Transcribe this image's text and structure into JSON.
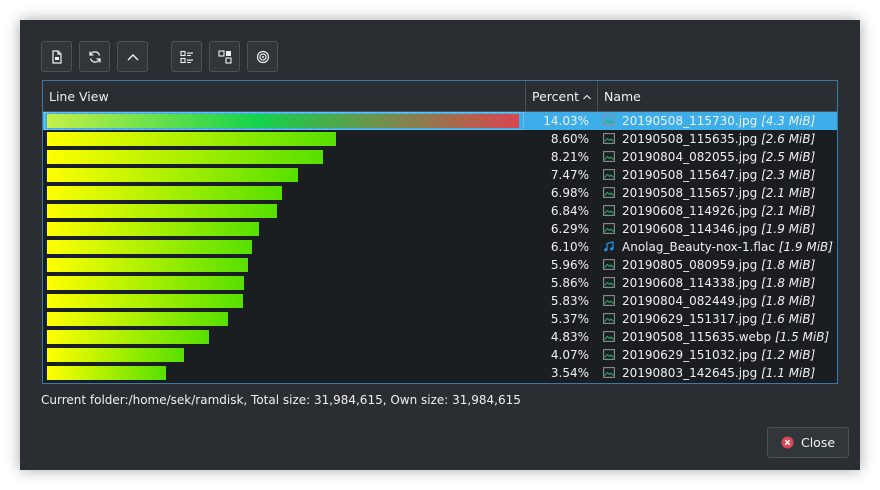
{
  "header": {
    "line_view": "Line View",
    "percent": "Percent",
    "name": "Name"
  },
  "rows": [
    {
      "pct": "14.03%",
      "value": 14.03,
      "name": "20190508_115730.jpg",
      "size": "[4.3 MiB]",
      "icon": "image-icon",
      "selected": true
    },
    {
      "pct": "8.60%",
      "value": 8.6,
      "name": "20190508_115635.jpg",
      "size": "[2.6 MiB]",
      "icon": "image-icon"
    },
    {
      "pct": "8.21%",
      "value": 8.21,
      "name": "20190804_082055.jpg",
      "size": "[2.5 MiB]",
      "icon": "image-icon"
    },
    {
      "pct": "7.47%",
      "value": 7.47,
      "name": "20190508_115647.jpg",
      "size": "[2.3 MiB]",
      "icon": "image-icon"
    },
    {
      "pct": "6.98%",
      "value": 6.98,
      "name": "20190508_115657.jpg",
      "size": "[2.1 MiB]",
      "icon": "image-icon"
    },
    {
      "pct": "6.84%",
      "value": 6.84,
      "name": "20190608_114926.jpg",
      "size": "[2.1 MiB]",
      "icon": "image-icon"
    },
    {
      "pct": "6.29%",
      "value": 6.29,
      "name": "20190608_114346.jpg",
      "size": "[1.9 MiB]",
      "icon": "image-icon"
    },
    {
      "pct": "6.10%",
      "value": 6.1,
      "name": "Anolag_Beauty-nox-1.flac",
      "size": "[1.9 MiB]",
      "icon": "audio-icon"
    },
    {
      "pct": "5.96%",
      "value": 5.96,
      "name": "20190805_080959.jpg",
      "size": "[1.8 MiB]",
      "icon": "image-icon"
    },
    {
      "pct": "5.86%",
      "value": 5.86,
      "name": "20190608_114338.jpg",
      "size": "[1.8 MiB]",
      "icon": "image-icon"
    },
    {
      "pct": "5.83%",
      "value": 5.83,
      "name": "20190804_082449.jpg",
      "size": "[1.8 MiB]",
      "icon": "image-icon"
    },
    {
      "pct": "5.37%",
      "value": 5.37,
      "name": "20190629_151317.jpg",
      "size": "[1.6 MiB]",
      "icon": "image-icon"
    },
    {
      "pct": "4.83%",
      "value": 4.83,
      "name": "20190508_115635.webp",
      "size": "[1.5 MiB]",
      "icon": "image-icon"
    },
    {
      "pct": "4.07%",
      "value": 4.07,
      "name": "20190629_151032.jpg",
      "size": "[1.2 MiB]",
      "icon": "image-icon"
    },
    {
      "pct": "3.54%",
      "value": 3.54,
      "name": "20190803_142645.jpg",
      "size": "[1.1 MiB]",
      "icon": "image-icon"
    }
  ],
  "status": "Current folder:/home/sek/ramdisk,  Total size: 31,984,615,  Own size: 31,984,615",
  "close_label": "Close",
  "toolbar_icons": [
    "new-document-icon",
    "refresh-icon",
    "go-up-icon",
    "detailed-view-icon",
    "tree-view-icon",
    "radial-view-icon"
  ],
  "colors": {
    "accent": "#3daee9",
    "background": "#2a2e32",
    "view_background": "#1b1e20",
    "close_icon": "#da4453",
    "image_icon": "#1d99f3"
  }
}
